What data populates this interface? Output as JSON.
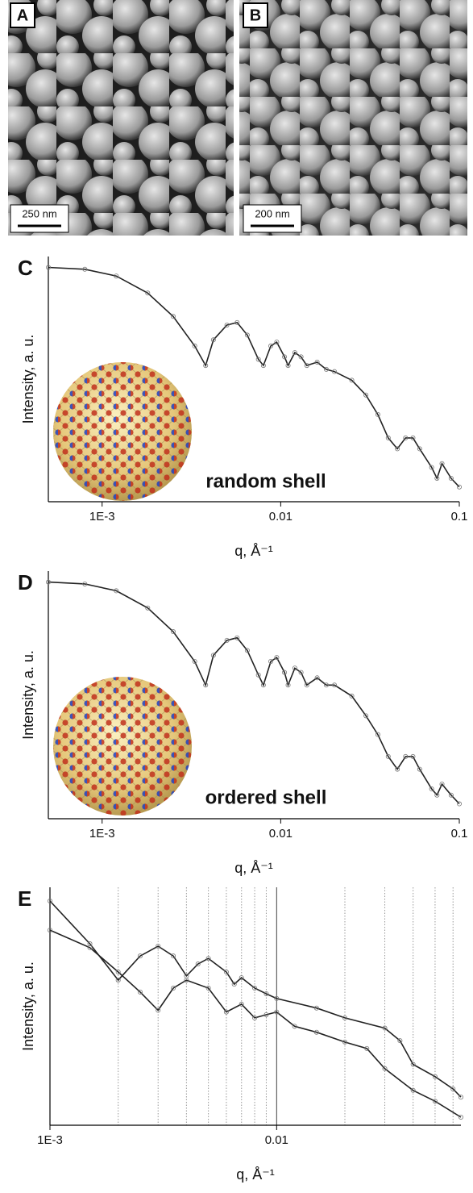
{
  "images": [
    {
      "panel": "A",
      "scale_bar": "250 nm"
    },
    {
      "panel": "B",
      "scale_bar": "200 nm"
    }
  ],
  "chart_data": [
    {
      "type": "line",
      "panel": "C",
      "annotation": "random shell",
      "x_label": "q, Å⁻¹",
      "y_label": "Intensity, a. u.",
      "xlog": true,
      "ylog": true,
      "xlim": [
        0.0005,
        0.1
      ],
      "ylim": [
        1e-05,
        1
      ],
      "xticks": [
        {
          "value": 0.001,
          "label": "1E-3"
        },
        0.01,
        0.1
      ],
      "series": [
        {
          "color": "#222222",
          "x": [
            0.0005,
            0.0008,
            0.0012,
            0.0018,
            0.0025,
            0.0033,
            0.0038,
            0.0042,
            0.005,
            0.0057,
            0.0065,
            0.0075,
            0.008,
            0.0088,
            0.0095,
            0.0105,
            0.011,
            0.012,
            0.013,
            0.014,
            0.016,
            0.018,
            0.02,
            0.025,
            0.03,
            0.035,
            0.04,
            0.045,
            0.05,
            0.055,
            0.06,
            0.07,
            0.075,
            0.08,
            0.09,
            0.1
          ],
          "values": [
            0.6,
            0.55,
            0.4,
            0.18,
            0.06,
            0.015,
            0.006,
            0.02,
            0.04,
            0.045,
            0.025,
            0.008,
            0.006,
            0.015,
            0.018,
            0.009,
            0.006,
            0.011,
            0.009,
            0.006,
            0.007,
            0.005,
            0.0045,
            0.003,
            0.0015,
            0.0006,
            0.0002,
            0.00012,
            0.0002,
            0.0002,
            0.00012,
            5e-05,
            3e-05,
            6e-05,
            3e-05,
            2e-05
          ]
        }
      ]
    },
    {
      "type": "line",
      "panel": "D",
      "annotation": "ordered shell",
      "x_label": "q, Å⁻¹",
      "y_label": "Intensity, a. u.",
      "xlog": true,
      "ylog": true,
      "xlim": [
        0.0005,
        0.1
      ],
      "ylim": [
        1e-05,
        1
      ],
      "xticks": [
        {
          "value": 0.001,
          "label": "1E-3"
        },
        0.01,
        0.1
      ],
      "series": [
        {
          "color": "#222222",
          "x": [
            0.0005,
            0.0008,
            0.0012,
            0.0018,
            0.0025,
            0.0033,
            0.0038,
            0.0042,
            0.005,
            0.0057,
            0.0065,
            0.0075,
            0.008,
            0.0088,
            0.0095,
            0.0105,
            0.011,
            0.012,
            0.013,
            0.014,
            0.016,
            0.018,
            0.02,
            0.025,
            0.03,
            0.035,
            0.04,
            0.045,
            0.05,
            0.055,
            0.06,
            0.07,
            0.075,
            0.08,
            0.09,
            0.1
          ],
          "values": [
            0.6,
            0.55,
            0.4,
            0.18,
            0.06,
            0.015,
            0.005,
            0.02,
            0.04,
            0.045,
            0.025,
            0.008,
            0.005,
            0.015,
            0.018,
            0.009,
            0.005,
            0.011,
            0.009,
            0.005,
            0.007,
            0.005,
            0.005,
            0.003,
            0.0012,
            0.0005,
            0.00018,
            0.0001,
            0.00018,
            0.00018,
            0.0001,
            4e-05,
            3e-05,
            5e-05,
            3e-05,
            2e-05
          ]
        }
      ]
    },
    {
      "type": "line",
      "panel": "E",
      "x_label": "q, Å⁻¹",
      "y_label": "Intensity, a. u.",
      "xlog": true,
      "ylog": true,
      "xlim": [
        0.001,
        0.065
      ],
      "ylim": [
        1e-05,
        1
      ],
      "xticks": [
        {
          "value": 0.001,
          "label": "1E-3"
        },
        0.01
      ],
      "xgrid": [
        0.002,
        0.003,
        0.004,
        0.005,
        0.006,
        0.007,
        0.008,
        0.009,
        0.02,
        0.03,
        0.04,
        0.05,
        0.06
      ],
      "series": [
        {
          "color": "#222222",
          "x": [
            0.001,
            0.0015,
            0.002,
            0.0025,
            0.003,
            0.0035,
            0.004,
            0.0045,
            0.005,
            0.006,
            0.0065,
            0.007,
            0.008,
            0.009,
            0.01,
            0.015,
            0.02,
            0.03,
            0.035,
            0.04,
            0.05,
            0.06,
            0.065
          ],
          "values": [
            0.515,
            0.065,
            0.0112,
            0.036,
            0.058,
            0.036,
            0.0137,
            0.0245,
            0.032,
            0.0166,
            0.0092,
            0.0126,
            0.0076,
            0.0058,
            0.0046,
            0.0029,
            0.0018,
            0.0011,
            0.0006,
            0.00019,
            0.000105,
            5.8e-05,
            3.9e-05
          ]
        },
        {
          "color": "#222222",
          "x": [
            0.001,
            0.0015,
            0.002,
            0.0025,
            0.003,
            0.0035,
            0.004,
            0.005,
            0.006,
            0.007,
            0.008,
            0.009,
            0.01,
            0.012,
            0.015,
            0.02,
            0.025,
            0.03,
            0.04,
            0.05,
            0.065
          ],
          "values": [
            0.126,
            0.054,
            0.0166,
            0.0063,
            0.0026,
            0.0076,
            0.0112,
            0.0076,
            0.0024,
            0.0035,
            0.0018,
            0.0021,
            0.0024,
            0.0012,
            0.0009,
            0.00056,
            0.00041,
            0.000155,
            5.4e-05,
            3.2e-05,
            1.48e-05
          ]
        }
      ]
    }
  ]
}
